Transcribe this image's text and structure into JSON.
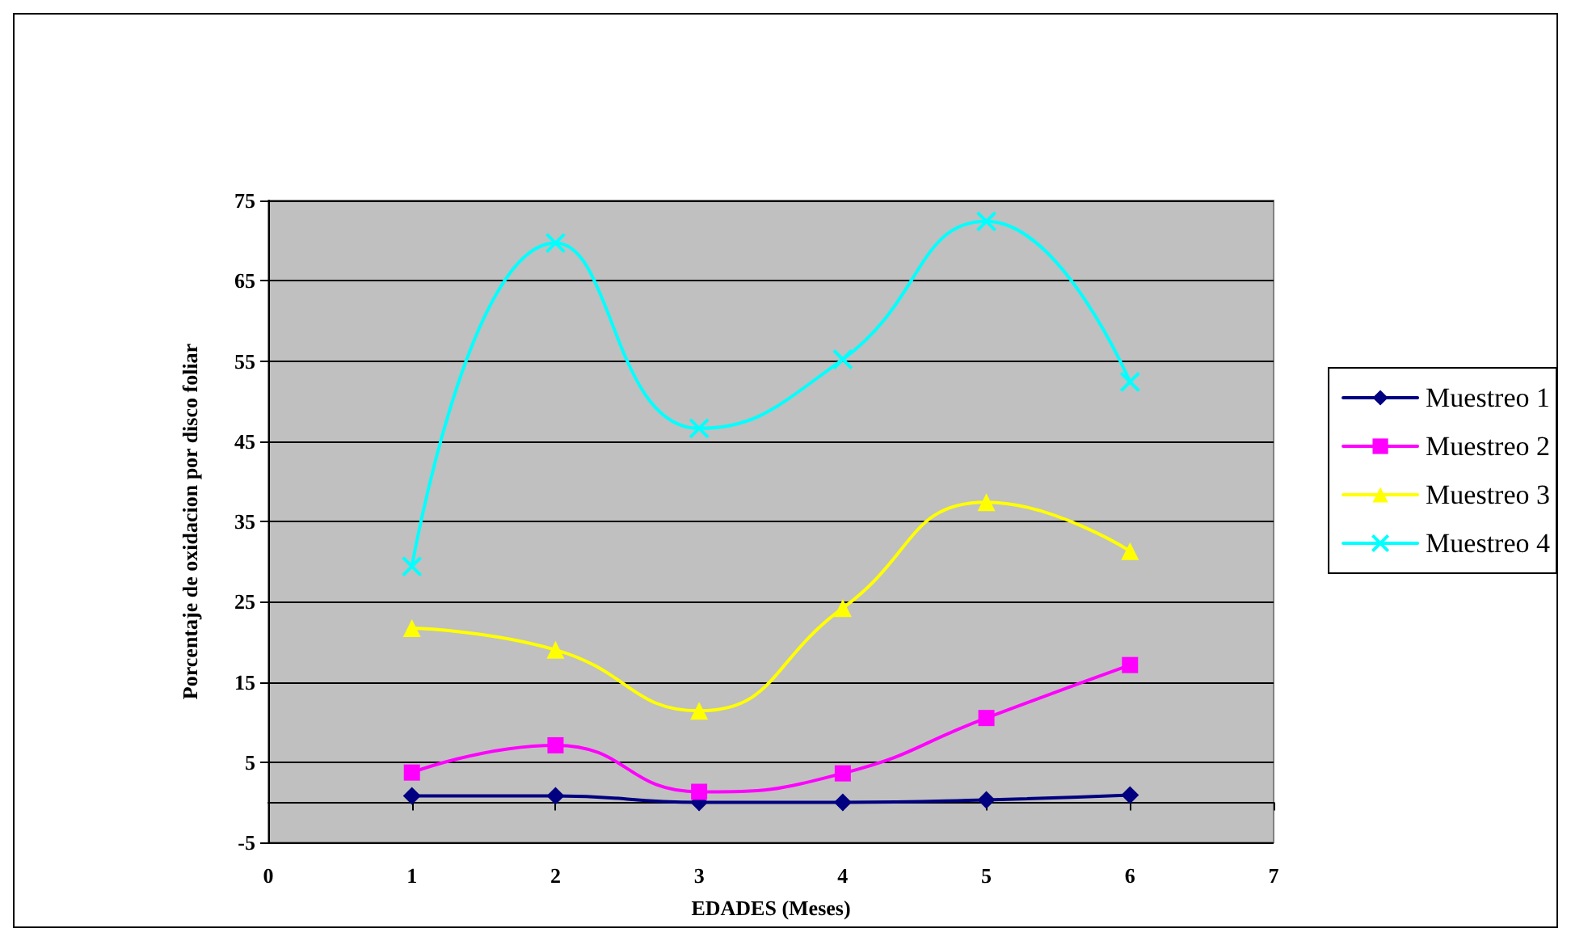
{
  "chart_data": {
    "type": "line",
    "xlabel": "EDADES (Meses)",
    "ylabel": "Porcentaje de oxidacion por disco foliar",
    "x": [
      1,
      2,
      3,
      4,
      5,
      6
    ],
    "series": [
      {
        "name": "Muestreo 1",
        "color": "#000080",
        "marker": "diamond",
        "values": [
          0.8,
          0.8,
          0,
          0,
          0.3,
          0.9
        ]
      },
      {
        "name": "Muestreo 2",
        "color": "#ff00ff",
        "marker": "square",
        "values": [
          3.7,
          7.1,
          1.3,
          3.6,
          10.5,
          17.1
        ]
      },
      {
        "name": "Muestreo 3",
        "color": "#ffff00",
        "marker": "triangle",
        "values": [
          21.7,
          19,
          11.4,
          24.2,
          37.4,
          31.3
        ]
      },
      {
        "name": "Muestreo 4",
        "color": "#00ffff",
        "marker": "cross",
        "values": [
          29.4,
          69.7,
          46.6,
          55.2,
          72.4,
          52.4
        ]
      }
    ],
    "xlim": [
      0,
      7
    ],
    "xticks": [
      0,
      1,
      2,
      3,
      4,
      5,
      6,
      7
    ],
    "ylim": [
      -5,
      75
    ],
    "yticks": [
      -5,
      5,
      15,
      25,
      35,
      45,
      55,
      65,
      75
    ],
    "grid": "y",
    "legend": "right",
    "line_style": "solid"
  }
}
